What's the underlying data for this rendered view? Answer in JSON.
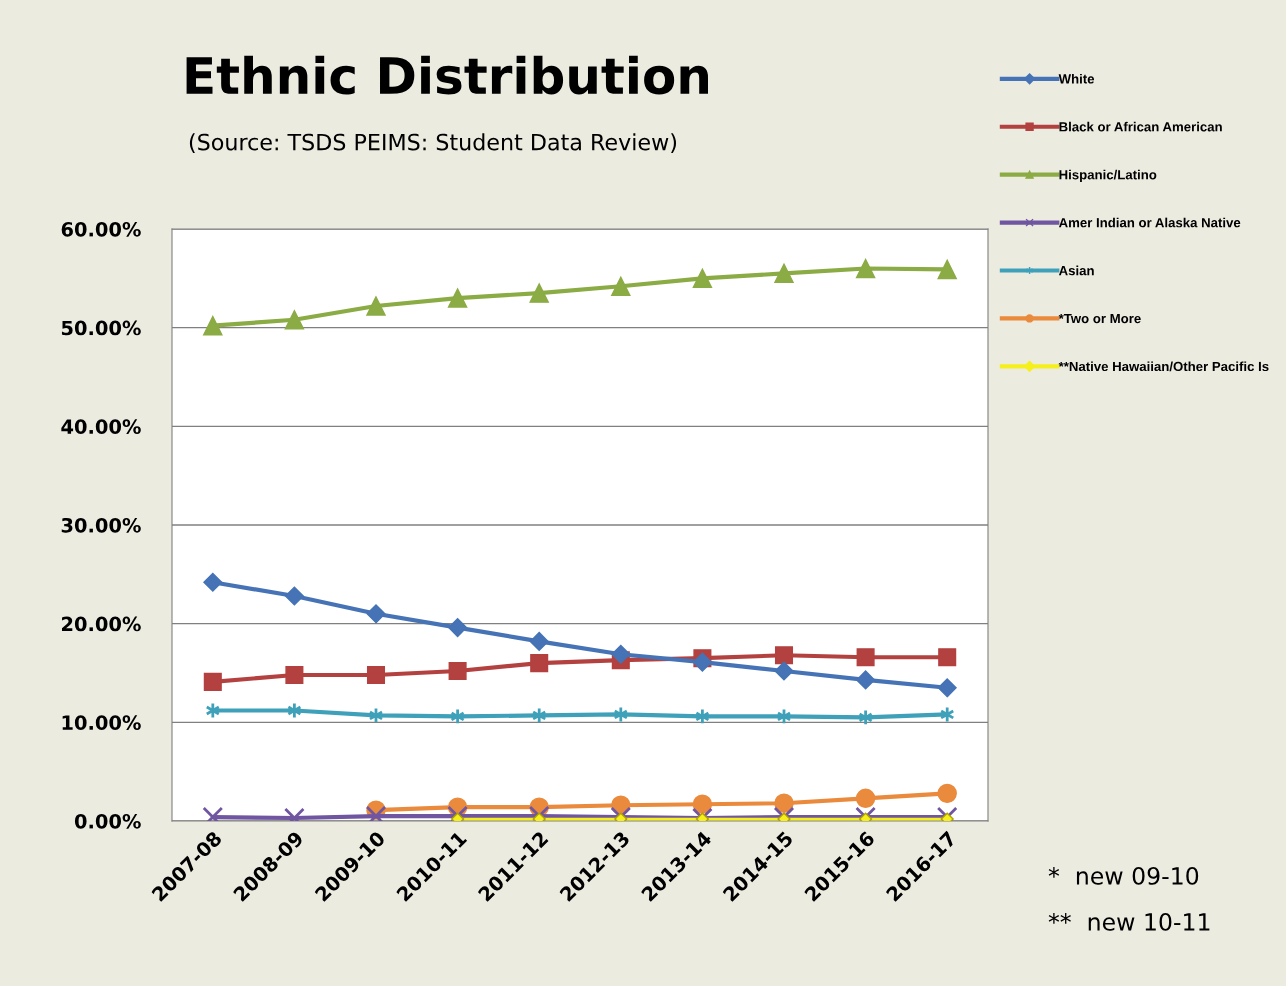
{
  "chart_data": {
    "type": "line",
    "title": "Ethnic Distribution",
    "subtitle": "(Source: TSDS PEIMS: Student Data Review)",
    "categories": [
      "2007-08",
      "2008-09",
      "2009-10",
      "2010-11",
      "2011-12",
      "2012-13",
      "2013-14",
      "2014-15",
      "2015-16",
      "2016-17"
    ],
    "series": [
      {
        "name": "White",
        "color": "#4573b5",
        "marker": "diamond",
        "values": [
          24.2,
          22.8,
          21.0,
          19.6,
          18.2,
          16.9,
          16.1,
          15.2,
          14.3,
          13.5
        ]
      },
      {
        "name": "Black or African American",
        "color": "#b3413f",
        "marker": "square",
        "values": [
          14.1,
          14.8,
          14.8,
          15.2,
          16.0,
          16.3,
          16.5,
          16.8,
          16.6,
          16.6
        ]
      },
      {
        "name": "Hispanic/Latino",
        "color": "#8bab45",
        "marker": "triangle",
        "values": [
          50.2,
          50.8,
          52.2,
          53.0,
          53.5,
          54.2,
          55.0,
          55.5,
          56.0,
          55.9
        ]
      },
      {
        "name": "Amer Indian or Alaska Native",
        "color": "#7055a0",
        "marker": "cross",
        "values": [
          0.4,
          0.3,
          0.5,
          0.5,
          0.5,
          0.4,
          0.3,
          0.4,
          0.4,
          0.4
        ]
      },
      {
        "name": "Asian",
        "color": "#3ea1b9",
        "marker": "cross",
        "values": [
          11.2,
          11.2,
          10.7,
          10.6,
          10.7,
          10.8,
          10.6,
          10.6,
          10.5,
          10.8
        ]
      },
      {
        "name": "*Two or More",
        "color": "#ea8a3c",
        "marker": "circle",
        "values": [
          null,
          null,
          1.1,
          1.4,
          1.4,
          1.6,
          1.7,
          1.8,
          2.3,
          2.8
        ]
      },
      {
        "name": "**Native Hawaiian/Other Pacific Is",
        "color": "#f5f01c",
        "marker": "diamond",
        "values": [
          null,
          null,
          null,
          0.2,
          0.2,
          0.2,
          0.2,
          0.2,
          0.2,
          0.2
        ]
      }
    ],
    "ylim": [
      0,
      60
    ],
    "yticks": [
      {
        "value": 0,
        "label": "0.00%"
      },
      {
        "value": 10,
        "label": "10.00%"
      },
      {
        "value": 20,
        "label": "20.00%"
      },
      {
        "value": 30,
        "label": "30.00%"
      },
      {
        "value": 40,
        "label": "40.00%"
      },
      {
        "value": 50,
        "label": "50.00%"
      },
      {
        "value": 60,
        "label": "60.00%"
      }
    ],
    "grid": "y",
    "legend": "right",
    "line_style": "solid",
    "annotations": [
      "*  new 09-10",
      "**  new 10-11"
    ]
  }
}
